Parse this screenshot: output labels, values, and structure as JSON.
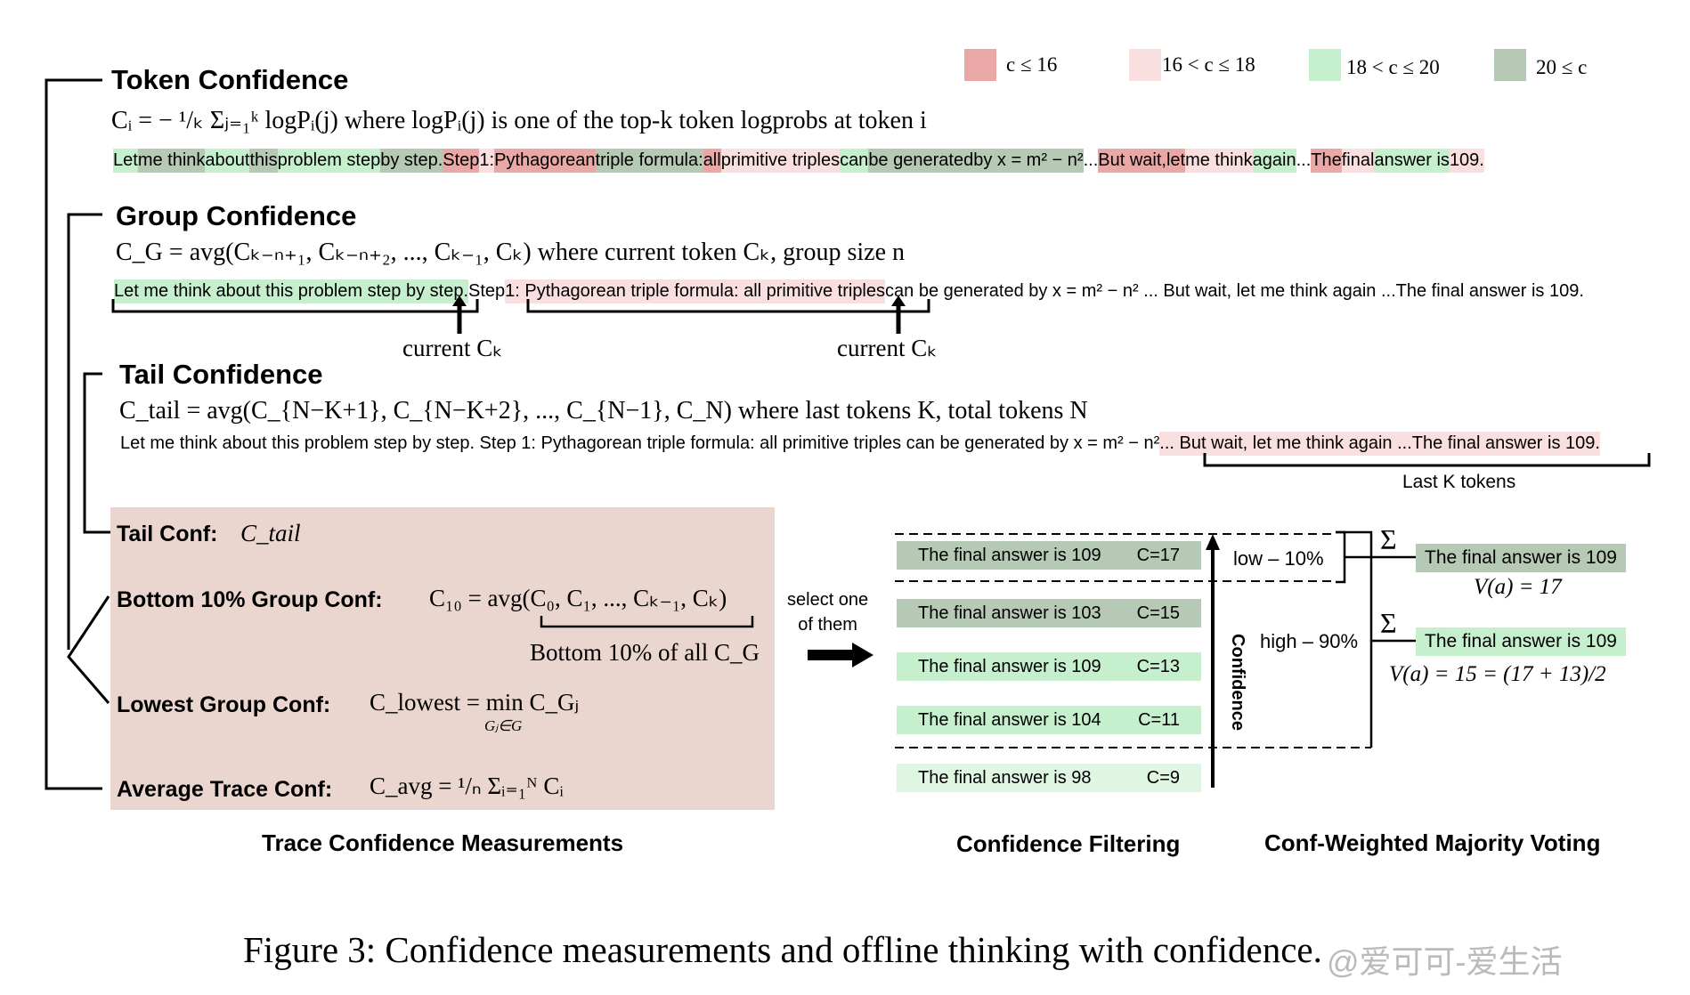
{
  "legend": [
    {
      "label": "c ≤ 16",
      "color": "#e9a8a6"
    },
    {
      "label": "16 < c ≤ 18",
      "color": "#f9dfe0"
    },
    {
      "label": "18 < c ≤ 20",
      "color": "#c5efcd"
    },
    {
      "label": "20 ≤ c",
      "color": "#b5c9b5"
    }
  ],
  "token_conf": {
    "title": "Token Confidence",
    "formula": "Cᵢ = − ¹/ₖ Σⱼ₌₁ᵏ logPᵢ(j) where logPᵢ(j) is one of the top-k token logprobs at token i",
    "tokens": [
      "Let",
      "me think",
      "about",
      "this",
      "problem step",
      "by step.",
      "Step",
      "1:",
      "Pythagorean",
      "triple formula:",
      "all",
      "primitive triples",
      "can",
      "be generated",
      "by x = m² − n²",
      "...",
      "But wait,",
      "let",
      "me think",
      "again",
      "...",
      "The",
      "final",
      "answer is",
      "109."
    ]
  },
  "group_conf": {
    "title": "Group Confidence",
    "formula": "C_G = avg(Cₖ₋ₙ₊₁, Cₖ₋ₙ₊₂, ..., Cₖ₋₁, Cₖ) where current token Cₖ, group size n",
    "seg1": "Let me think about this problem step by step.",
    "seg2": " Step ",
    "seg3": "1: Pythagorean triple formula: all primitive triples",
    "seg4": " can be generated by x = m² − n² ... But wait, let me think again ...The final answer is 109.",
    "current1": "current Cₖ",
    "current2": "current  Cₖ"
  },
  "tail_conf": {
    "title": "Tail Confidence",
    "formula": "C_tail = avg(C_{N−K+1}, C_{N−K+2}, ..., C_{N−1}, C_N) where last tokens K, total tokens N",
    "seg1": "Let me think about this problem step by step. Step 1: Pythagorean triple formula: all primitive triples can be generated by x = m² − n² ",
    "seg2": "... But wait, let me think again ...The final answer is 109.",
    "last_k": "Last K tokens"
  },
  "measures": {
    "tail_label": "Tail Conf:",
    "tail_math": "C_tail",
    "bottom_label": "Bottom 10% Group Conf:",
    "bottom_math": "C₁₀ = avg(C₀, C₁, ..., Cₖ₋₁, Cₖ)",
    "bottom_note": "Bottom 10% of all C_G",
    "lowest_label": "Lowest Group Conf:",
    "lowest_math": "C_lowest = min C_Gⱼ",
    "lowest_sub": "Gⱼ∈G",
    "avg_label": "Average Trace Conf:",
    "avg_math": "C_avg = ¹/ₙ Σᵢ₌₁ᴺ Cᵢ"
  },
  "select": {
    "line1": "select one",
    "line2": "of them"
  },
  "filtering": {
    "answers": [
      {
        "text": "The final answer is 109",
        "conf": "C=17",
        "color": "#b5c9b5"
      },
      {
        "text": "The final answer is 103",
        "conf": "C=15",
        "color": "#b5c9b5"
      },
      {
        "text": "The final answer is 109",
        "conf": "C=13",
        "color": "#c5efcd"
      },
      {
        "text": "The final answer is 104",
        "conf": "C=11",
        "color": "#c5efcd"
      },
      {
        "text": "The final answer is 98",
        "conf": "C=9",
        "color": "#dff6e3"
      }
    ],
    "low": "low – 10%",
    "high": "high – 90%",
    "axis": "Confidence"
  },
  "voting": {
    "sigma": "Σ",
    "r1": "The final answer is 109",
    "v1": "V(a) = 17",
    "r2": "The final answer is 109",
    "v2": "V(a) = 15 = (17 + 13)/2"
  },
  "captions": {
    "left": "Trace Confidence Measurements",
    "mid": "Confidence Filtering",
    "right": "Conf-Weighted Majority Voting"
  },
  "figure_caption": "Figure 3: Confidence measurements and offline thinking with confidence.",
  "watermark": "@爱可可-爱生活"
}
